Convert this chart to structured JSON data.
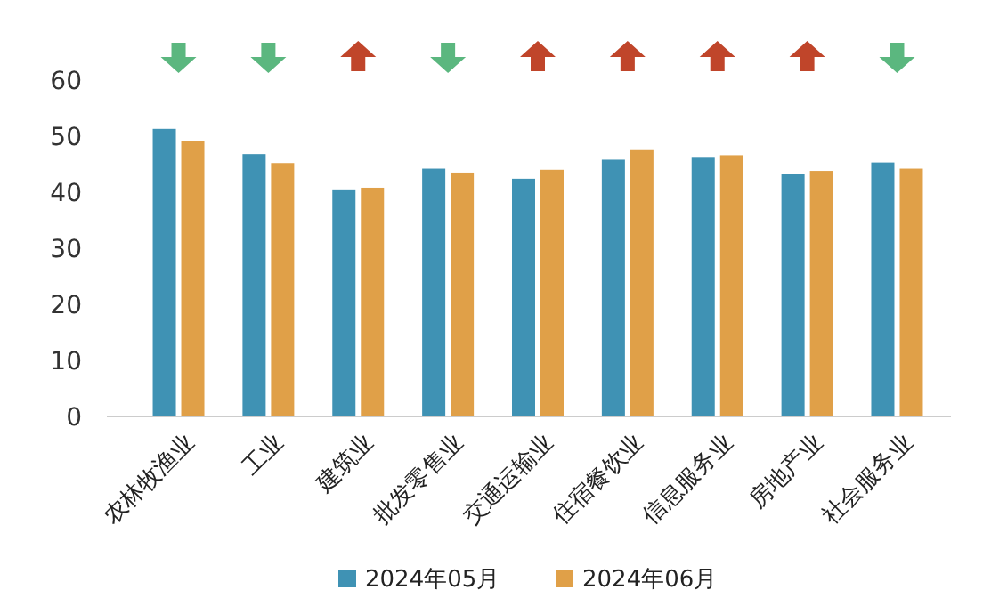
{
  "chart_data": {
    "type": "bar",
    "categories": [
      "农林牧渔业",
      "工业",
      "建筑业",
      "批发零售业",
      "交通运输业",
      "住宿餐饮业",
      "信息服务业",
      "房地产业",
      "社会服务业"
    ],
    "series": [
      {
        "name": "2024年05月",
        "color": "#3f92b4",
        "values": [
          51.3,
          46.8,
          40.5,
          44.2,
          42.4,
          45.8,
          46.3,
          43.2,
          45.3
        ]
      },
      {
        "name": "2024年06月",
        "color": "#e0a048",
        "values": [
          49.2,
          45.2,
          40.8,
          43.5,
          44.0,
          47.5,
          46.6,
          43.8,
          44.2
        ]
      }
    ],
    "ylim": [
      0,
      60
    ],
    "yticks": [
      0,
      10,
      20,
      30,
      40,
      50,
      60
    ],
    "grid": false,
    "legend": "bottom"
  }
}
